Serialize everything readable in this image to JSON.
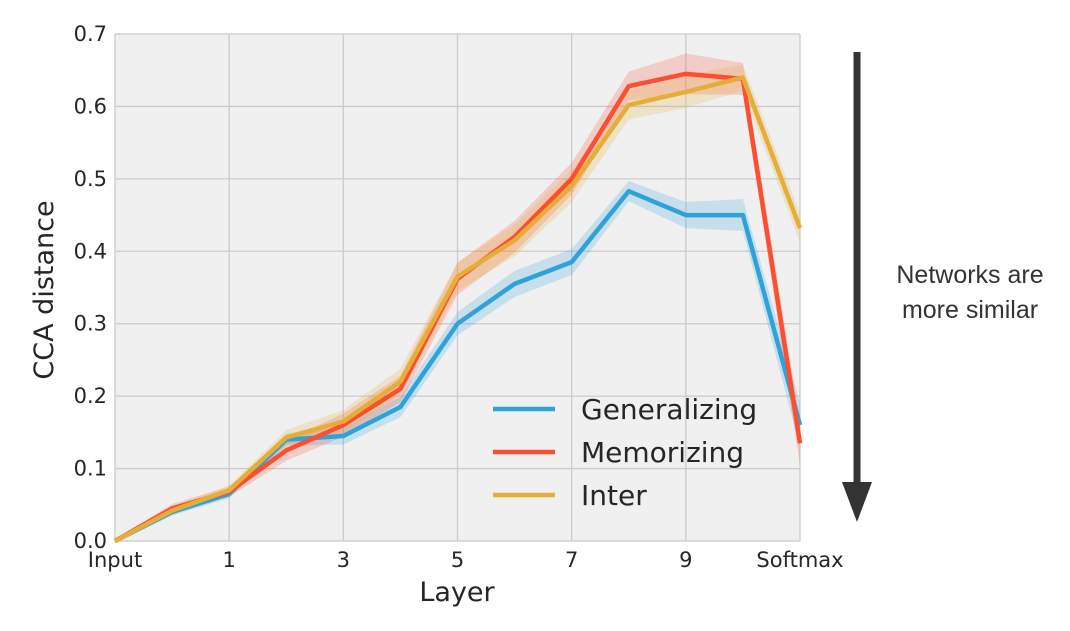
{
  "chart_data": {
    "type": "line",
    "title": "",
    "xlabel": "Layer",
    "ylabel": "CCA distance",
    "x": [
      0,
      1,
      2,
      3,
      4,
      5,
      6,
      7,
      8,
      9,
      10,
      11,
      12
    ],
    "xtick_values": [
      0,
      2,
      4,
      6,
      8,
      10,
      12
    ],
    "xtick_labels": [
      "Input",
      "1",
      "3",
      "5",
      "7",
      "9",
      "Softmax"
    ],
    "ylim": [
      0.0,
      0.7
    ],
    "yticks": [
      "0.0",
      "0.1",
      "0.2",
      "0.3",
      "0.4",
      "0.5",
      "0.6",
      "0.7"
    ],
    "grid": true,
    "legend_position": "lower-right",
    "series": [
      {
        "name": "Generalizing",
        "color": "#30a2da",
        "values": [
          0.0,
          0.04,
          0.065,
          0.14,
          0.145,
          0.185,
          0.3,
          0.355,
          0.385,
          0.483,
          0.45,
          0.45,
          0.16
        ],
        "band": [
          0.003,
          0.005,
          0.006,
          0.008,
          0.012,
          0.014,
          0.016,
          0.018,
          0.018,
          0.014,
          0.018,
          0.022,
          0.03
        ]
      },
      {
        "name": "Memorizing",
        "color": "#fc4f30",
        "values": [
          0.0,
          0.045,
          0.068,
          0.125,
          0.16,
          0.21,
          0.362,
          0.42,
          0.5,
          0.628,
          0.645,
          0.638,
          0.135
        ],
        "band": [
          0.003,
          0.006,
          0.007,
          0.014,
          0.016,
          0.018,
          0.022,
          0.022,
          0.022,
          0.02,
          0.028,
          0.022,
          0.03
        ]
      },
      {
        "name": "Inter",
        "color": "#e5ae38",
        "values": [
          0.0,
          0.042,
          0.07,
          0.143,
          0.165,
          0.22,
          0.365,
          0.415,
          0.49,
          0.602,
          0.62,
          0.64,
          0.432
        ],
        "band": [
          0.003,
          0.006,
          0.007,
          0.01,
          0.016,
          0.018,
          0.02,
          0.022,
          0.022,
          0.02,
          0.022,
          0.018,
          0.02
        ]
      }
    ],
    "annotation": {
      "text_line1": "Networks are",
      "text_line2": "more similar",
      "arrow_color": "#333333"
    },
    "background": "#f0f0f0",
    "grid_color": "#cbcbcb"
  }
}
